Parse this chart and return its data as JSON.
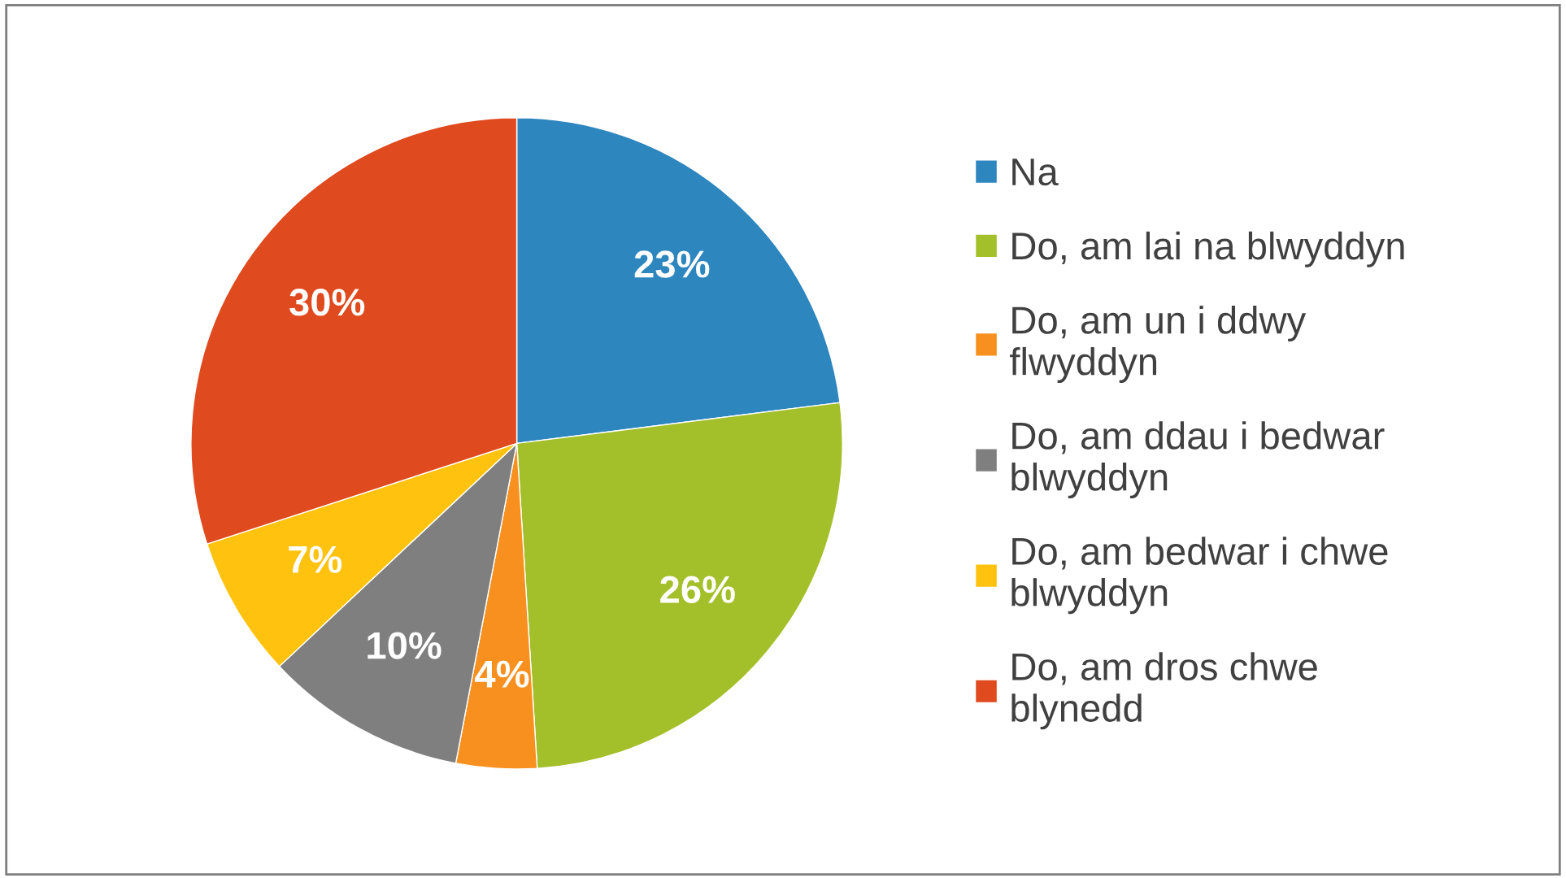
{
  "chart_data": {
    "type": "pie",
    "categories": [
      "Na",
      "Do, am lai na blwyddyn",
      "Do, am un i ddwy flwyddyn",
      "Do, am ddau i bedwar blwyddyn",
      "Do, am bedwar i chwe blwyddyn",
      "Do, am dros chwe blynedd"
    ],
    "values": [
      23,
      26,
      4,
      10,
      7,
      30
    ],
    "value_labels": [
      "23%",
      "26%",
      "4%",
      "10%",
      "7%",
      "30%"
    ],
    "colors": [
      "#2e86bf",
      "#a3bf2a",
      "#f7901e",
      "#7f7f7f",
      "#ffc20e",
      "#e04a1f"
    ],
    "legend": "right"
  }
}
